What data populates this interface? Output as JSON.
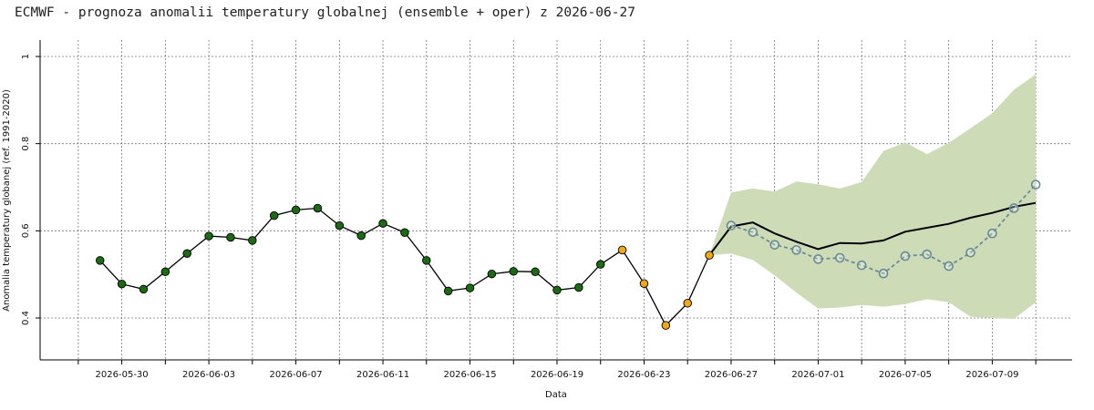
{
  "chart_data": {
    "type": "line",
    "title": "ECMWF - prognoza anomalii temperatury globalnej (ensemble + oper) z 2026-06-27",
    "xlabel": "Data",
    "ylabel": "Anomalia temperatury globanej (ref. 1991-2020)",
    "ylim": [
      0.4,
      1.0
    ],
    "yticks": [
      0.4,
      0.6,
      0.8,
      1.0
    ],
    "ytick_labels": [
      "0.4",
      "0.6",
      "0.8",
      "1"
    ],
    "xlim": [
      "2026-05-27",
      "2026-07-12"
    ],
    "xticks": [
      "2026-05-30",
      "2026-06-03",
      "2026-06-07",
      "2026-06-11",
      "2026-06-15",
      "2026-06-19",
      "2026-06-23",
      "2026-06-27",
      "2026-07-01",
      "2026-07-05",
      "2026-07-09"
    ],
    "grid": true,
    "colors": {
      "observed": "#1b6b12",
      "preliminary": "#f0a81a",
      "ensemble_mean": "#000000",
      "ensemble_spread": "#cddcb7",
      "oper": "#6a8a96"
    },
    "series": [
      {
        "role": "observed",
        "x": [
          "2026-05-29",
          "2026-05-30",
          "2026-05-31",
          "2026-06-01",
          "2026-06-02",
          "2026-06-03",
          "2026-06-04",
          "2026-06-05",
          "2026-06-06",
          "2026-06-07",
          "2026-06-08",
          "2026-06-09",
          "2026-06-10",
          "2026-06-11",
          "2026-06-12",
          "2026-06-13",
          "2026-06-14",
          "2026-06-15",
          "2026-06-16",
          "2026-06-17",
          "2026-06-18",
          "2026-06-19",
          "2026-06-20",
          "2026-06-21"
        ],
        "values": [
          0.532,
          0.478,
          0.466,
          0.506,
          0.548,
          0.588,
          0.585,
          0.578,
          0.635,
          0.648,
          0.652,
          0.612,
          0.589,
          0.617,
          0.596,
          0.532,
          0.462,
          0.469,
          0.501,
          0.507,
          0.506,
          0.464,
          0.47,
          0.523
        ]
      },
      {
        "role": "preliminary",
        "x": [
          "2026-06-22",
          "2026-06-23",
          "2026-06-24",
          "2026-06-25",
          "2026-06-26"
        ],
        "values": [
          0.556,
          0.479,
          0.383,
          0.434,
          0.544
        ]
      },
      {
        "role": "ensemble_mean",
        "x": [
          "2026-06-26",
          "2026-06-27",
          "2026-06-28",
          "2026-06-29",
          "2026-06-30",
          "2026-07-01",
          "2026-07-02",
          "2026-07-03",
          "2026-07-04",
          "2026-07-05",
          "2026-07-06",
          "2026-07-07",
          "2026-07-08",
          "2026-07-09",
          "2026-07-10",
          "2026-07-11"
        ],
        "values": [
          0.544,
          0.61,
          0.619,
          0.594,
          0.575,
          0.558,
          0.572,
          0.571,
          0.578,
          0.598,
          0.607,
          0.616,
          0.63,
          0.641,
          0.655,
          0.664
        ]
      },
      {
        "role": "ensemble_spread",
        "x": [
          "2026-06-26",
          "2026-06-27",
          "2026-06-28",
          "2026-06-29",
          "2026-06-30",
          "2026-07-01",
          "2026-07-02",
          "2026-07-03",
          "2026-07-04",
          "2026-07-05",
          "2026-07-06",
          "2026-07-07",
          "2026-07-08",
          "2026-07-09",
          "2026-07-10",
          "2026-07-11"
        ],
        "low": [
          0.544,
          0.548,
          0.533,
          0.498,
          0.458,
          0.422,
          0.424,
          0.43,
          0.426,
          0.432,
          0.443,
          0.436,
          0.403,
          0.4,
          0.398,
          0.436
        ],
        "high": [
          0.544,
          0.688,
          0.697,
          0.69,
          0.713,
          0.707,
          0.697,
          0.712,
          0.783,
          0.803,
          0.776,
          0.802,
          0.835,
          0.87,
          0.924,
          0.959
        ]
      },
      {
        "role": "oper",
        "x": [
          "2026-06-27",
          "2026-06-28",
          "2026-06-29",
          "2026-06-30",
          "2026-07-01",
          "2026-07-02",
          "2026-07-03",
          "2026-07-04",
          "2026-07-05",
          "2026-07-06",
          "2026-07-07",
          "2026-07-08",
          "2026-07-09",
          "2026-07-10",
          "2026-07-11"
        ],
        "values": [
          0.612,
          0.597,
          0.568,
          0.556,
          0.535,
          0.538,
          0.521,
          0.502,
          0.542,
          0.546,
          0.519,
          0.55,
          0.594,
          0.652,
          0.706
        ]
      }
    ]
  }
}
